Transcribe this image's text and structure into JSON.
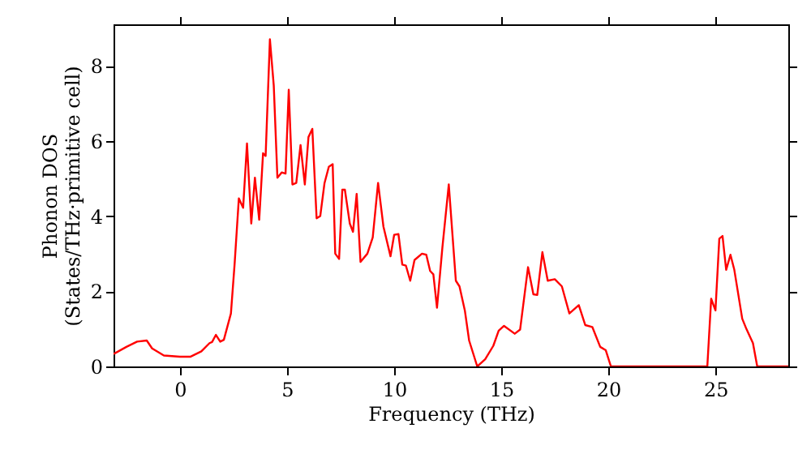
{
  "chart_data": {
    "type": "line",
    "xlabel": "Frequency (THz)",
    "ylabel": "Phonon DOS\n(States/THz·primitive cell)",
    "x": [
      -3.1,
      -2.5,
      -2.0,
      -1.55,
      -1.3,
      -0.75,
      0,
      0.5,
      1.0,
      1.38,
      1.5,
      1.68,
      1.88,
      2.05,
      2.38,
      2.55,
      2.75,
      2.95,
      3.13,
      3.33,
      3.5,
      3.7,
      3.88,
      4.0,
      4.2,
      4.38,
      4.55,
      4.75,
      4.93,
      5.08,
      5.25,
      5.43,
      5.63,
      5.83,
      6.0,
      6.18,
      6.38,
      6.55,
      6.75,
      6.95,
      7.13,
      7.25,
      7.43,
      7.58,
      7.7,
      7.93,
      8.08,
      8.25,
      8.43,
      8.75,
      9.0,
      9.25,
      9.5,
      9.83,
      10.0,
      10.2,
      10.38,
      10.55,
      10.75,
      10.95,
      11.3,
      11.5,
      11.68,
      11.83,
      12.0,
      12.25,
      12.55,
      12.88,
      13.05,
      13.3,
      13.5,
      13.88,
      14.25,
      14.63,
      14.88,
      15.13,
      15.63,
      15.88,
      16.25,
      16.5,
      16.68,
      16.92,
      17.17,
      17.5,
      17.83,
      18.18,
      18.62,
      18.92,
      19.25,
      19.62,
      19.88,
      20.12,
      24.62,
      24.8,
      25.0,
      25.18,
      25.33,
      25.5,
      25.7,
      25.88,
      26.25,
      26.45,
      26.75,
      26.95,
      28.4
    ],
    "series": [
      {
        "color": "#ff0000",
        "values": [
          0.33,
          0.52,
          0.66,
          0.69,
          0.48,
          0.29,
          0.26,
          0.26,
          0.4,
          0.62,
          0.65,
          0.84,
          0.66,
          0.71,
          1.41,
          2.71,
          4.47,
          4.22,
          5.93,
          3.8,
          5.02,
          3.9,
          5.67,
          5.6,
          8.7,
          7.47,
          5.02,
          5.16,
          5.13,
          7.36,
          4.84,
          4.88,
          5.89,
          4.84,
          6.1,
          6.32,
          3.94,
          4.0,
          4.88,
          5.31,
          5.38,
          3.0,
          2.86,
          4.7,
          4.7,
          3.8,
          3.58,
          4.59,
          2.78,
          3.0,
          3.43,
          4.88,
          3.72,
          2.93,
          3.5,
          3.52,
          2.71,
          2.68,
          2.28,
          2.83,
          3.0,
          2.97,
          2.54,
          2.45,
          1.56,
          3.15,
          4.84,
          2.28,
          2.13,
          1.49,
          0.69,
          0.0,
          0.19,
          0.55,
          0.95,
          1.08,
          0.87,
          0.98,
          2.64,
          1.92,
          1.9,
          3.04,
          2.28,
          2.32,
          2.13,
          1.41,
          1.63,
          1.1,
          1.05,
          0.52,
          0.43,
          0.0,
          0.0,
          1.8,
          1.49,
          3.4,
          3.47,
          2.57,
          2.97,
          2.57,
          1.27,
          0.99,
          0.62,
          0.0,
          0.0
        ]
      }
    ],
    "xlim": [
      -3.1,
      28.4
    ],
    "ylim": [
      0,
      9.1
    ],
    "xticks": [
      0,
      5,
      10,
      15,
      20,
      25
    ],
    "yticks": [
      0,
      2,
      4,
      6,
      8
    ],
    "grid": false,
    "marker": "none",
    "line_style": "solid"
  }
}
